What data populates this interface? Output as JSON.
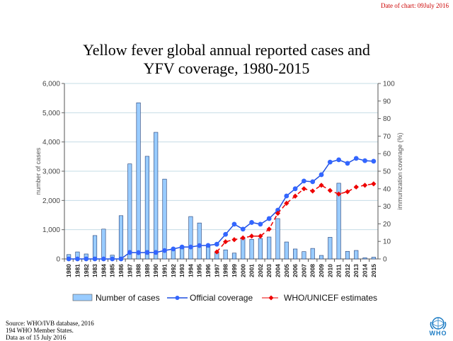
{
  "date_of_chart": "Date of chart: 09July 2016",
  "title_line1": "Yellow fever global annual  reported cases and",
  "title_line2": "YFV coverage, 1980-2015",
  "footer": {
    "line1": "Source:  WHO/IVB database,  2016",
    "line2": "194 WHO Member States.",
    "line3": "Data as of 15 July 2016"
  },
  "logo_text": "WHO",
  "colors": {
    "bars": "#99ccff",
    "bar_border": "#1f3b73",
    "official": "#1f4fe0",
    "official_marker": "#3366ff",
    "estimates": "#ee0000",
    "grid": "#c5dce6",
    "date": "#cc0000"
  },
  "chart_data": {
    "type": "bar+line",
    "title": "Yellow fever global annual reported cases and YFV coverage, 1980-2015",
    "categories": [
      "1980",
      "1981",
      "1982",
      "1983",
      "1984",
      "1985",
      "1986",
      "1987",
      "1988",
      "1989",
      "1990",
      "1991",
      "1992",
      "1993",
      "1994",
      "1995",
      "1996",
      "1997",
      "1998",
      "1999",
      "2000",
      "2001",
      "2002",
      "2003",
      "2004",
      "2005",
      "2006",
      "2007",
      "2008",
      "2009",
      "2010",
      "2011",
      "2012",
      "2013",
      "2014",
      "2015"
    ],
    "ylabel": "number of cases",
    "y2label": "immunization coverage (%)",
    "ylim": [
      0,
      6000
    ],
    "y2lim": [
      0,
      100
    ],
    "yticks": [
      "0",
      "1,000",
      "2,000",
      "3,000",
      "4,000",
      "5,000",
      "6,000"
    ],
    "y2ticks": [
      "0",
      "10",
      "20",
      "30",
      "40",
      "50",
      "60",
      "70",
      "80",
      "90",
      "100"
    ],
    "grid": true,
    "legend_position": "bottom",
    "series": [
      {
        "name": "Number of cases",
        "kind": "bar",
        "axis": "left",
        "values": [
          150,
          240,
          170,
          800,
          1020,
          130,
          1480,
          3250,
          5340,
          3510,
          4330,
          2730,
          310,
          390,
          1450,
          1230,
          460,
          210,
          310,
          200,
          700,
          670,
          700,
          750,
          1380,
          580,
          340,
          250,
          360,
          120,
          740,
          2590,
          260,
          290,
          40,
          60
        ]
      },
      {
        "name": "Official coverage",
        "kind": "line",
        "axis": "right",
        "values": [
          0,
          0,
          0,
          0,
          0,
          0,
          0,
          3.7,
          3.6,
          3.7,
          3.7,
          4.8,
          5.7,
          6.8,
          6.8,
          7.6,
          7.7,
          8.4,
          14,
          19.8,
          17,
          20.8,
          19.8,
          23,
          27.8,
          35.9,
          40,
          44.4,
          44,
          48,
          55.2,
          56.5,
          54.5,
          57.3,
          56,
          55.7
        ]
      },
      {
        "name": "WHO/UNICEF estimates",
        "kind": "line",
        "axis": "right",
        "values": [
          null,
          null,
          null,
          null,
          null,
          null,
          null,
          null,
          null,
          null,
          null,
          null,
          null,
          null,
          null,
          null,
          null,
          4,
          9.8,
          11,
          12,
          13,
          13,
          17,
          26,
          31.7,
          35.8,
          40,
          38.7,
          42,
          39,
          37,
          38.3,
          41,
          42,
          42.8
        ]
      }
    ]
  }
}
